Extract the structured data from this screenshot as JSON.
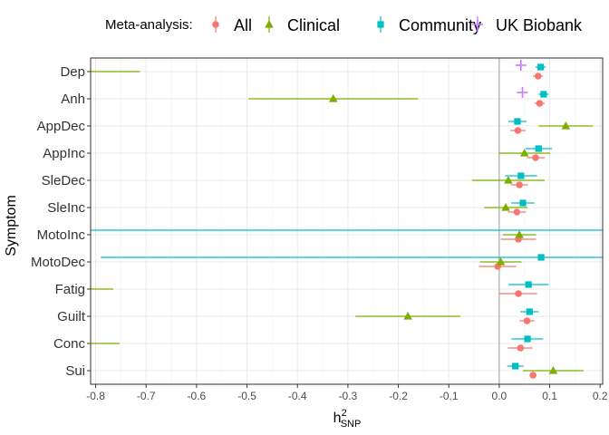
{
  "chart_data": {
    "type": "forest",
    "xlabel_main": "h",
    "xlabel_sup": "2",
    "xlabel_sub": "SNP",
    "ylabel": "Symptom",
    "xlim": [
      -0.81,
      0.205
    ],
    "x_ticks": [
      -0.8,
      -0.7,
      -0.6,
      -0.5,
      -0.4,
      -0.3,
      -0.2,
      -0.1,
      0.0,
      0.1,
      0.2
    ],
    "x_tick_labels": [
      "-0.8",
      "-0.7",
      "-0.6",
      "-0.5",
      "-0.4",
      "-0.3",
      "-0.2",
      "-0.1",
      "0.0",
      "0.1",
      "0.2"
    ],
    "reference_line": 0,
    "grid": true,
    "legend": {
      "position": "top",
      "title": "Meta-analysis:",
      "entries": [
        {
          "name": "All",
          "color": "#F8766D",
          "shape": "circle"
        },
        {
          "name": "Clinical",
          "color": "#7CAE00",
          "shape": "triangle"
        },
        {
          "name": "Community",
          "color": "#00BFC4",
          "shape": "square"
        },
        {
          "name": "UK Biobank",
          "color": "#C77CFF",
          "shape": "plus"
        }
      ]
    },
    "categories": [
      "Dep",
      "Anh",
      "AppDec",
      "AppInc",
      "SleDec",
      "SleInc",
      "MotoInc",
      "MotoDec",
      "Fatig",
      "Guilt",
      "Conc",
      "Sui"
    ],
    "series": [
      {
        "name": "All",
        "values": [
          {
            "y": "Dep",
            "x": 0.077,
            "lo": 0.067,
            "hi": 0.087
          },
          {
            "y": "Anh",
            "x": 0.08,
            "lo": 0.07,
            "hi": 0.09
          },
          {
            "y": "AppDec",
            "x": 0.037,
            "lo": 0.022,
            "hi": 0.052
          },
          {
            "y": "AppInc",
            "x": 0.072,
            "lo": 0.055,
            "hi": 0.09
          },
          {
            "y": "SleDec",
            "x": 0.04,
            "lo": 0.023,
            "hi": 0.057
          },
          {
            "y": "SleInc",
            "x": 0.035,
            "lo": 0.017,
            "hi": 0.053
          },
          {
            "y": "MotoInc",
            "x": 0.038,
            "lo": 0.003,
            "hi": 0.073
          },
          {
            "y": "MotoDec",
            "x": -0.003,
            "lo": -0.04,
            "hi": 0.034
          },
          {
            "y": "Fatig",
            "x": 0.038,
            "lo": 0.0,
            "hi": 0.075
          },
          {
            "y": "Guilt",
            "x": 0.055,
            "lo": 0.04,
            "hi": 0.07
          },
          {
            "y": "Conc",
            "x": 0.042,
            "lo": 0.017,
            "hi": 0.066
          },
          {
            "y": "Sui",
            "x": 0.067,
            "lo": 0.06,
            "hi": 0.074
          }
        ]
      },
      {
        "name": "Clinical",
        "values": [
          {
            "y": "Dep",
            "x": null,
            "lo": -0.81,
            "hi": -0.712
          },
          {
            "y": "Anh",
            "x": -0.329,
            "lo": -0.497,
            "hi": -0.161
          },
          {
            "y": "AppDec",
            "x": 0.132,
            "lo": 0.078,
            "hi": 0.186
          },
          {
            "y": "AppInc",
            "x": 0.05,
            "lo": -0.001,
            "hi": 0.101
          },
          {
            "y": "SleDec",
            "x": 0.018,
            "lo": -0.054,
            "hi": 0.09
          },
          {
            "y": "SleInc",
            "x": 0.013,
            "lo": -0.03,
            "hi": 0.056
          },
          {
            "y": "MotoInc",
            "x": 0.04,
            "lo": 0.007,
            "hi": 0.073
          },
          {
            "y": "MotoDec",
            "x": 0.003,
            "lo": -0.038,
            "hi": 0.044
          },
          {
            "y": "Fatig",
            "x": null,
            "lo": -0.81,
            "hi": -0.765
          },
          {
            "y": "Guilt",
            "x": -0.181,
            "lo": -0.285,
            "hi": -0.077
          },
          {
            "y": "Conc",
            "x": null,
            "lo": -0.81,
            "hi": -0.752
          },
          {
            "y": "Sui",
            "x": 0.107,
            "lo": 0.047,
            "hi": 0.167
          }
        ]
      },
      {
        "name": "Community",
        "values": [
          {
            "y": "Dep",
            "x": 0.082,
            "lo": 0.072,
            "hi": 0.092
          },
          {
            "y": "Anh",
            "x": 0.088,
            "lo": 0.078,
            "hi": 0.098
          },
          {
            "y": "AppDec",
            "x": 0.036,
            "lo": 0.018,
            "hi": 0.054
          },
          {
            "y": "AppInc",
            "x": 0.078,
            "lo": 0.052,
            "hi": 0.105
          },
          {
            "y": "SleDec",
            "x": 0.043,
            "lo": 0.012,
            "hi": 0.075
          },
          {
            "y": "SleInc",
            "x": 0.047,
            "lo": 0.024,
            "hi": 0.07
          },
          {
            "y": "MotoInc",
            "x": null,
            "lo": -0.81,
            "hi": 0.205
          },
          {
            "y": "MotoDec",
            "x": 0.083,
            "lo": -0.79,
            "hi": 0.205
          },
          {
            "y": "Fatig",
            "x": 0.058,
            "lo": 0.018,
            "hi": 0.098
          },
          {
            "y": "Guilt",
            "x": 0.06,
            "lo": 0.042,
            "hi": 0.078
          },
          {
            "y": "Conc",
            "x": 0.056,
            "lo": 0.024,
            "hi": 0.087
          },
          {
            "y": "Sui",
            "x": 0.032,
            "lo": 0.016,
            "hi": 0.048
          }
        ]
      },
      {
        "name": "UK Biobank",
        "values": [
          {
            "y": "Dep",
            "x": 0.043,
            "lo": null,
            "hi": null
          },
          {
            "y": "Anh",
            "x": 0.046,
            "lo": null,
            "hi": null
          }
        ]
      }
    ]
  }
}
